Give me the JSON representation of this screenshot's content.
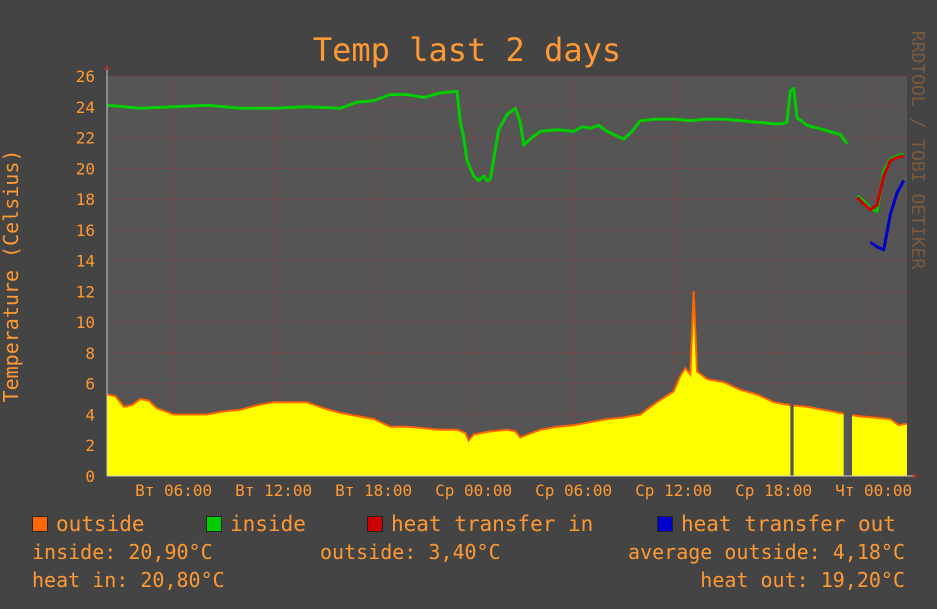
{
  "chart_data": {
    "type": "line",
    "title": "Temp last 2 days",
    "ylabel": "Temperature (Celsius)",
    "watermark": "RRDTOOL / TOBI OETIKER",
    "ylim": [
      0,
      26
    ],
    "yticks": [
      0,
      2,
      4,
      6,
      8,
      10,
      12,
      14,
      16,
      18,
      20,
      22,
      24,
      26
    ],
    "xlim_hours": [
      2,
      50
    ],
    "xticks": [
      {
        "hour": 6,
        "label": "Вт 06:00"
      },
      {
        "hour": 12,
        "label": "Вт 12:00"
      },
      {
        "hour": 18,
        "label": "Вт 18:00"
      },
      {
        "hour": 24,
        "label": "Ср 00:00"
      },
      {
        "hour": 30,
        "label": "Ср 06:00"
      },
      {
        "hour": 36,
        "label": "Ср 12:00"
      },
      {
        "hour": 42,
        "label": "Ср 18:00"
      },
      {
        "hour": 48,
        "label": "Чт 00:00"
      }
    ],
    "colors": {
      "background": "#444444",
      "canvas": "#555555",
      "grid": "#aa3333",
      "font": "#ff9933",
      "outside": "#ff6600",
      "area": "#ffff00",
      "inside": "#00cc00",
      "heat_in": "#cc0000",
      "heat_out": "#0000cc"
    },
    "series": [
      {
        "name": "outside",
        "kind": "area",
        "points": [
          [
            2.0,
            5.3
          ],
          [
            2.5,
            5.2
          ],
          [
            3.0,
            4.5
          ],
          [
            3.5,
            4.6
          ],
          [
            4.0,
            5.0
          ],
          [
            4.5,
            4.9
          ],
          [
            5.0,
            4.4
          ],
          [
            6.0,
            4.0
          ],
          [
            7.0,
            4.0
          ],
          [
            8.0,
            4.0
          ],
          [
            9.0,
            4.2
          ],
          [
            10.0,
            4.3
          ],
          [
            11.0,
            4.6
          ],
          [
            12.0,
            4.8
          ],
          [
            13.0,
            4.8
          ],
          [
            14.0,
            4.8
          ],
          [
            15.0,
            4.4
          ],
          [
            16.0,
            4.1
          ],
          [
            17.0,
            3.9
          ],
          [
            18.0,
            3.7
          ],
          [
            19.0,
            3.2
          ],
          [
            20.0,
            3.2
          ],
          [
            21.0,
            3.1
          ],
          [
            22.0,
            3.0
          ],
          [
            23.0,
            3.0
          ],
          [
            23.5,
            2.8
          ],
          [
            23.7,
            2.3
          ],
          [
            24.0,
            2.7
          ],
          [
            25.0,
            2.9
          ],
          [
            26.0,
            3.0
          ],
          [
            26.5,
            2.9
          ],
          [
            26.8,
            2.5
          ],
          [
            27.0,
            2.6
          ],
          [
            28.0,
            3.0
          ],
          [
            29.0,
            3.2
          ],
          [
            30.0,
            3.3
          ],
          [
            31.0,
            3.5
          ],
          [
            32.0,
            3.7
          ],
          [
            33.0,
            3.8
          ],
          [
            34.0,
            4.0
          ],
          [
            35.0,
            4.8
          ],
          [
            36.0,
            5.5
          ],
          [
            36.4,
            6.5
          ],
          [
            36.7,
            7.0
          ],
          [
            37.0,
            6.6
          ],
          [
            37.2,
            12.0
          ],
          [
            37.4,
            6.8
          ],
          [
            38.0,
            6.3
          ],
          [
            39.0,
            6.1
          ],
          [
            40.0,
            5.6
          ],
          [
            41.0,
            5.3
          ],
          [
            42.0,
            4.8
          ],
          [
            43.0,
            4.6
          ],
          [
            44.0,
            4.5
          ],
          [
            45.0,
            4.3
          ],
          [
            46.0,
            4.1
          ],
          [
            47.0,
            3.9
          ],
          [
            48.0,
            3.8
          ],
          [
            49.0,
            3.7
          ],
          [
            49.5,
            3.3
          ],
          [
            50.0,
            3.4
          ]
        ],
        "gaps_hours": [
          [
            43.0,
            43.2
          ],
          [
            46.2,
            46.7
          ]
        ]
      },
      {
        "name": "inside",
        "kind": "line",
        "segments": [
          [
            [
              2.0,
              24.1
            ],
            [
              4.0,
              23.9
            ],
            [
              6.0,
              24.0
            ],
            [
              8.0,
              24.1
            ],
            [
              10.0,
              23.9
            ],
            [
              12.0,
              23.9
            ],
            [
              14.0,
              24.0
            ],
            [
              16.0,
              23.9
            ],
            [
              17.0,
              24.3
            ],
            [
              18.0,
              24.4
            ],
            [
              19.0,
              24.8
            ],
            [
              20.0,
              24.8
            ],
            [
              21.0,
              24.6
            ],
            [
              22.0,
              24.9
            ],
            [
              23.0,
              25.0
            ],
            [
              23.2,
              23.0
            ],
            [
              23.4,
              22.0
            ],
            [
              23.6,
              20.5
            ],
            [
              23.8,
              20.0
            ],
            [
              24.0,
              19.5
            ],
            [
              24.3,
              19.2
            ],
            [
              24.6,
              19.5
            ],
            [
              24.8,
              19.2
            ],
            [
              25.0,
              19.3
            ],
            [
              25.5,
              22.5
            ],
            [
              26.0,
              23.5
            ],
            [
              26.5,
              23.9
            ],
            [
              26.8,
              23.0
            ],
            [
              27.0,
              21.5
            ],
            [
              27.5,
              22.0
            ],
            [
              28.0,
              22.4
            ],
            [
              29.0,
              22.5
            ],
            [
              30.0,
              22.4
            ],
            [
              30.5,
              22.7
            ],
            [
              31.0,
              22.6
            ],
            [
              31.5,
              22.8
            ],
            [
              32.0,
              22.4
            ],
            [
              33.0,
              21.9
            ],
            [
              33.5,
              22.4
            ],
            [
              34.0,
              23.1
            ],
            [
              35.0,
              23.2
            ],
            [
              36.0,
              23.2
            ],
            [
              37.0,
              23.1
            ],
            [
              38.0,
              23.2
            ],
            [
              39.0,
              23.2
            ],
            [
              40.0,
              23.1
            ],
            [
              41.0,
              23.0
            ],
            [
              42.0,
              22.9
            ],
            [
              42.5,
              22.9
            ],
            [
              42.8,
              23.0
            ],
            [
              43.0,
              25.0
            ],
            [
              43.2,
              25.2
            ],
            [
              43.4,
              23.3
            ],
            [
              44.0,
              22.8
            ],
            [
              45.0,
              22.5
            ],
            [
              46.0,
              22.2
            ],
            [
              46.4,
              21.6
            ]
          ],
          [
            [
              47.0,
              18.2
            ],
            [
              47.4,
              17.9
            ],
            [
              47.8,
              17.4
            ],
            [
              48.2,
              17.2
            ],
            [
              48.6,
              19.8
            ],
            [
              49.0,
              20.6
            ],
            [
              49.4,
              20.8
            ],
            [
              49.8,
              20.9
            ]
          ]
        ]
      },
      {
        "name": "heat transfer in",
        "kind": "line",
        "segments": [
          [
            [
              47.0,
              18.1
            ],
            [
              47.4,
              17.7
            ],
            [
              47.8,
              17.3
            ],
            [
              48.2,
              17.6
            ],
            [
              48.6,
              19.5
            ],
            [
              49.0,
              20.5
            ],
            [
              49.4,
              20.7
            ],
            [
              49.8,
              20.8
            ]
          ]
        ]
      },
      {
        "name": "heat transfer out",
        "kind": "line",
        "segments": [
          [
            [
              47.8,
              15.2
            ],
            [
              48.2,
              14.9
            ],
            [
              48.6,
              14.7
            ],
            [
              49.0,
              17.0
            ],
            [
              49.4,
              18.4
            ],
            [
              49.8,
              19.2
            ]
          ]
        ]
      }
    ]
  },
  "legend": [
    {
      "label": "outside",
      "color": "#ff6600"
    },
    {
      "label": "inside",
      "color": "#00cc00"
    },
    {
      "label": "heat transfer in",
      "color": "#cc0000"
    },
    {
      "label": "heat transfer out",
      "color": "#0000cc"
    }
  ],
  "stats": {
    "inside": "inside: 20,90°C",
    "outside": "outside: 3,40°C",
    "average_outside": "average outside: 4,18°C",
    "heat_in": "heat in: 20,80°C",
    "heat_out": "heat out: 19,20°C"
  }
}
